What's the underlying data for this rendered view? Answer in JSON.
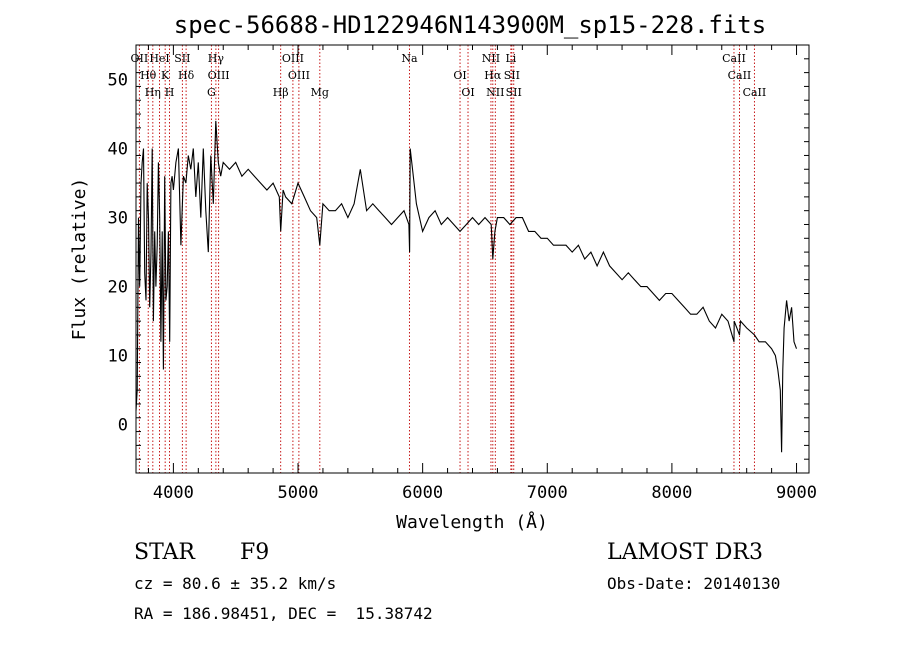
{
  "chart_data": {
    "type": "line",
    "title": "spec-56688-HD122946N143900M_sp15-228.fits",
    "xlabel": "Wavelength (Å)",
    "ylabel": "Flux (relative)",
    "xlim": [
      3700,
      9100
    ],
    "ylim": [
      -7,
      55
    ],
    "xticks": [
      4000,
      5000,
      6000,
      7000,
      8000,
      9000
    ],
    "yticks": [
      0,
      10,
      20,
      30,
      40,
      50
    ],
    "series": [
      {
        "name": "spectrum",
        "x": [
          3700,
          3710,
          3720,
          3730,
          3740,
          3750,
          3760,
          3770,
          3780,
          3790,
          3800,
          3810,
          3820,
          3830,
          3840,
          3850,
          3860,
          3870,
          3880,
          3890,
          3900,
          3910,
          3920,
          3930,
          3940,
          3950,
          3960,
          3970,
          3980,
          3990,
          4000,
          4020,
          4040,
          4060,
          4080,
          4100,
          4120,
          4140,
          4160,
          4180,
          4200,
          4220,
          4240,
          4260,
          4280,
          4300,
          4320,
          4340,
          4360,
          4380,
          4400,
          4450,
          4500,
          4550,
          4600,
          4650,
          4700,
          4750,
          4800,
          4850,
          4861,
          4880,
          4900,
          4950,
          5000,
          5050,
          5100,
          5150,
          5175,
          5200,
          5250,
          5300,
          5350,
          5400,
          5450,
          5500,
          5550,
          5600,
          5650,
          5700,
          5750,
          5800,
          5850,
          5890,
          5895,
          5900,
          5950,
          6000,
          6050,
          6100,
          6150,
          6200,
          6250,
          6300,
          6350,
          6400,
          6450,
          6500,
          6550,
          6563,
          6580,
          6600,
          6650,
          6700,
          6750,
          6800,
          6850,
          6900,
          6950,
          7000,
          7050,
          7100,
          7150,
          7200,
          7250,
          7300,
          7350,
          7400,
          7450,
          7500,
          7550,
          7600,
          7650,
          7700,
          7750,
          7800,
          7850,
          7900,
          7950,
          8000,
          8050,
          8100,
          8150,
          8200,
          8250,
          8300,
          8350,
          8400,
          8450,
          8498,
          8500,
          8542,
          8550,
          8600,
          8662,
          8700,
          8750,
          8800,
          8830,
          8850,
          8870,
          8880,
          8890,
          8900,
          8920,
          8940,
          8960,
          8980,
          9000
        ],
        "y": [
          2,
          5,
          30,
          20,
          35,
          38,
          40,
          22,
          18,
          35,
          30,
          17,
          25,
          40,
          15,
          28,
          20,
          26,
          38,
          30,
          12,
          28,
          8,
          36,
          18,
          20,
          28,
          12,
          35,
          36,
          34,
          38,
          40,
          26,
          36,
          35,
          39,
          37,
          40,
          33,
          38,
          30,
          40,
          31,
          25,
          39,
          32,
          44,
          38,
          36,
          38,
          37,
          38,
          36,
          37,
          36,
          35,
          34,
          35,
          33,
          28,
          34,
          33,
          32,
          35,
          33,
          31,
          30,
          26,
          32,
          31,
          31,
          32,
          30,
          32,
          37,
          31,
          32,
          31,
          30,
          29,
          30,
          31,
          29,
          25,
          40,
          32,
          28,
          30,
          31,
          29,
          30,
          29,
          28,
          29,
          30,
          29,
          30,
          29,
          24,
          28,
          30,
          30,
          29,
          30,
          30,
          28,
          28,
          27,
          27,
          26,
          26,
          26,
          25,
          26,
          24,
          25,
          23,
          25,
          23,
          22,
          21,
          22,
          21,
          20,
          20,
          19,
          18,
          19,
          19,
          18,
          17,
          16,
          16,
          17,
          15,
          14,
          16,
          15,
          12,
          15,
          13,
          15,
          14,
          13,
          12,
          12,
          11,
          10,
          8,
          5,
          -4,
          8,
          14,
          18,
          15,
          17,
          12,
          11
        ]
      }
    ],
    "lines": [
      {
        "name": "OII",
        "x": 3727
      },
      {
        "name": "Hθ",
        "x": 3798
      },
      {
        "name": "Hη",
        "x": 3835
      },
      {
        "name": "HeI",
        "x": 3889
      },
      {
        "name": "K",
        "x": 3934
      },
      {
        "name": "H",
        "x": 3969
      },
      {
        "name": "SII",
        "x": 4072
      },
      {
        "name": "Hδ",
        "x": 4102
      },
      {
        "name": "G",
        "x": 4305
      },
      {
        "name": "Hγ",
        "x": 4341
      },
      {
        "name": "OIII",
        "x": 4363
      },
      {
        "name": "Hβ",
        "x": 4861
      },
      {
        "name": "OIII",
        "x": 4959
      },
      {
        "name": "OIII",
        "x": 5007
      },
      {
        "name": "Mg",
        "x": 5175
      },
      {
        "name": "Na",
        "x": 5894
      },
      {
        "name": "OI",
        "x": 6300
      },
      {
        "name": "OI",
        "x": 6364
      },
      {
        "name": "NII",
        "x": 6548
      },
      {
        "name": "Hα",
        "x": 6563
      },
      {
        "name": "NII",
        "x": 6583
      },
      {
        "name": "Li",
        "x": 6708
      },
      {
        "name": "SII",
        "x": 6716
      },
      {
        "name": "SII",
        "x": 6731
      },
      {
        "name": "CaII",
        "x": 8498
      },
      {
        "name": "CaII",
        "x": 8542
      },
      {
        "name": "CaII",
        "x": 8662
      }
    ]
  },
  "info": {
    "object_class": "STAR",
    "subclass": "F9",
    "survey": "LAMOST DR3",
    "redshift": "cz = 80.6 ± 35.2 km/s",
    "obs_date": "Obs-Date: 20140130",
    "coords": "RA = 186.98451, DEC =  15.38742"
  }
}
